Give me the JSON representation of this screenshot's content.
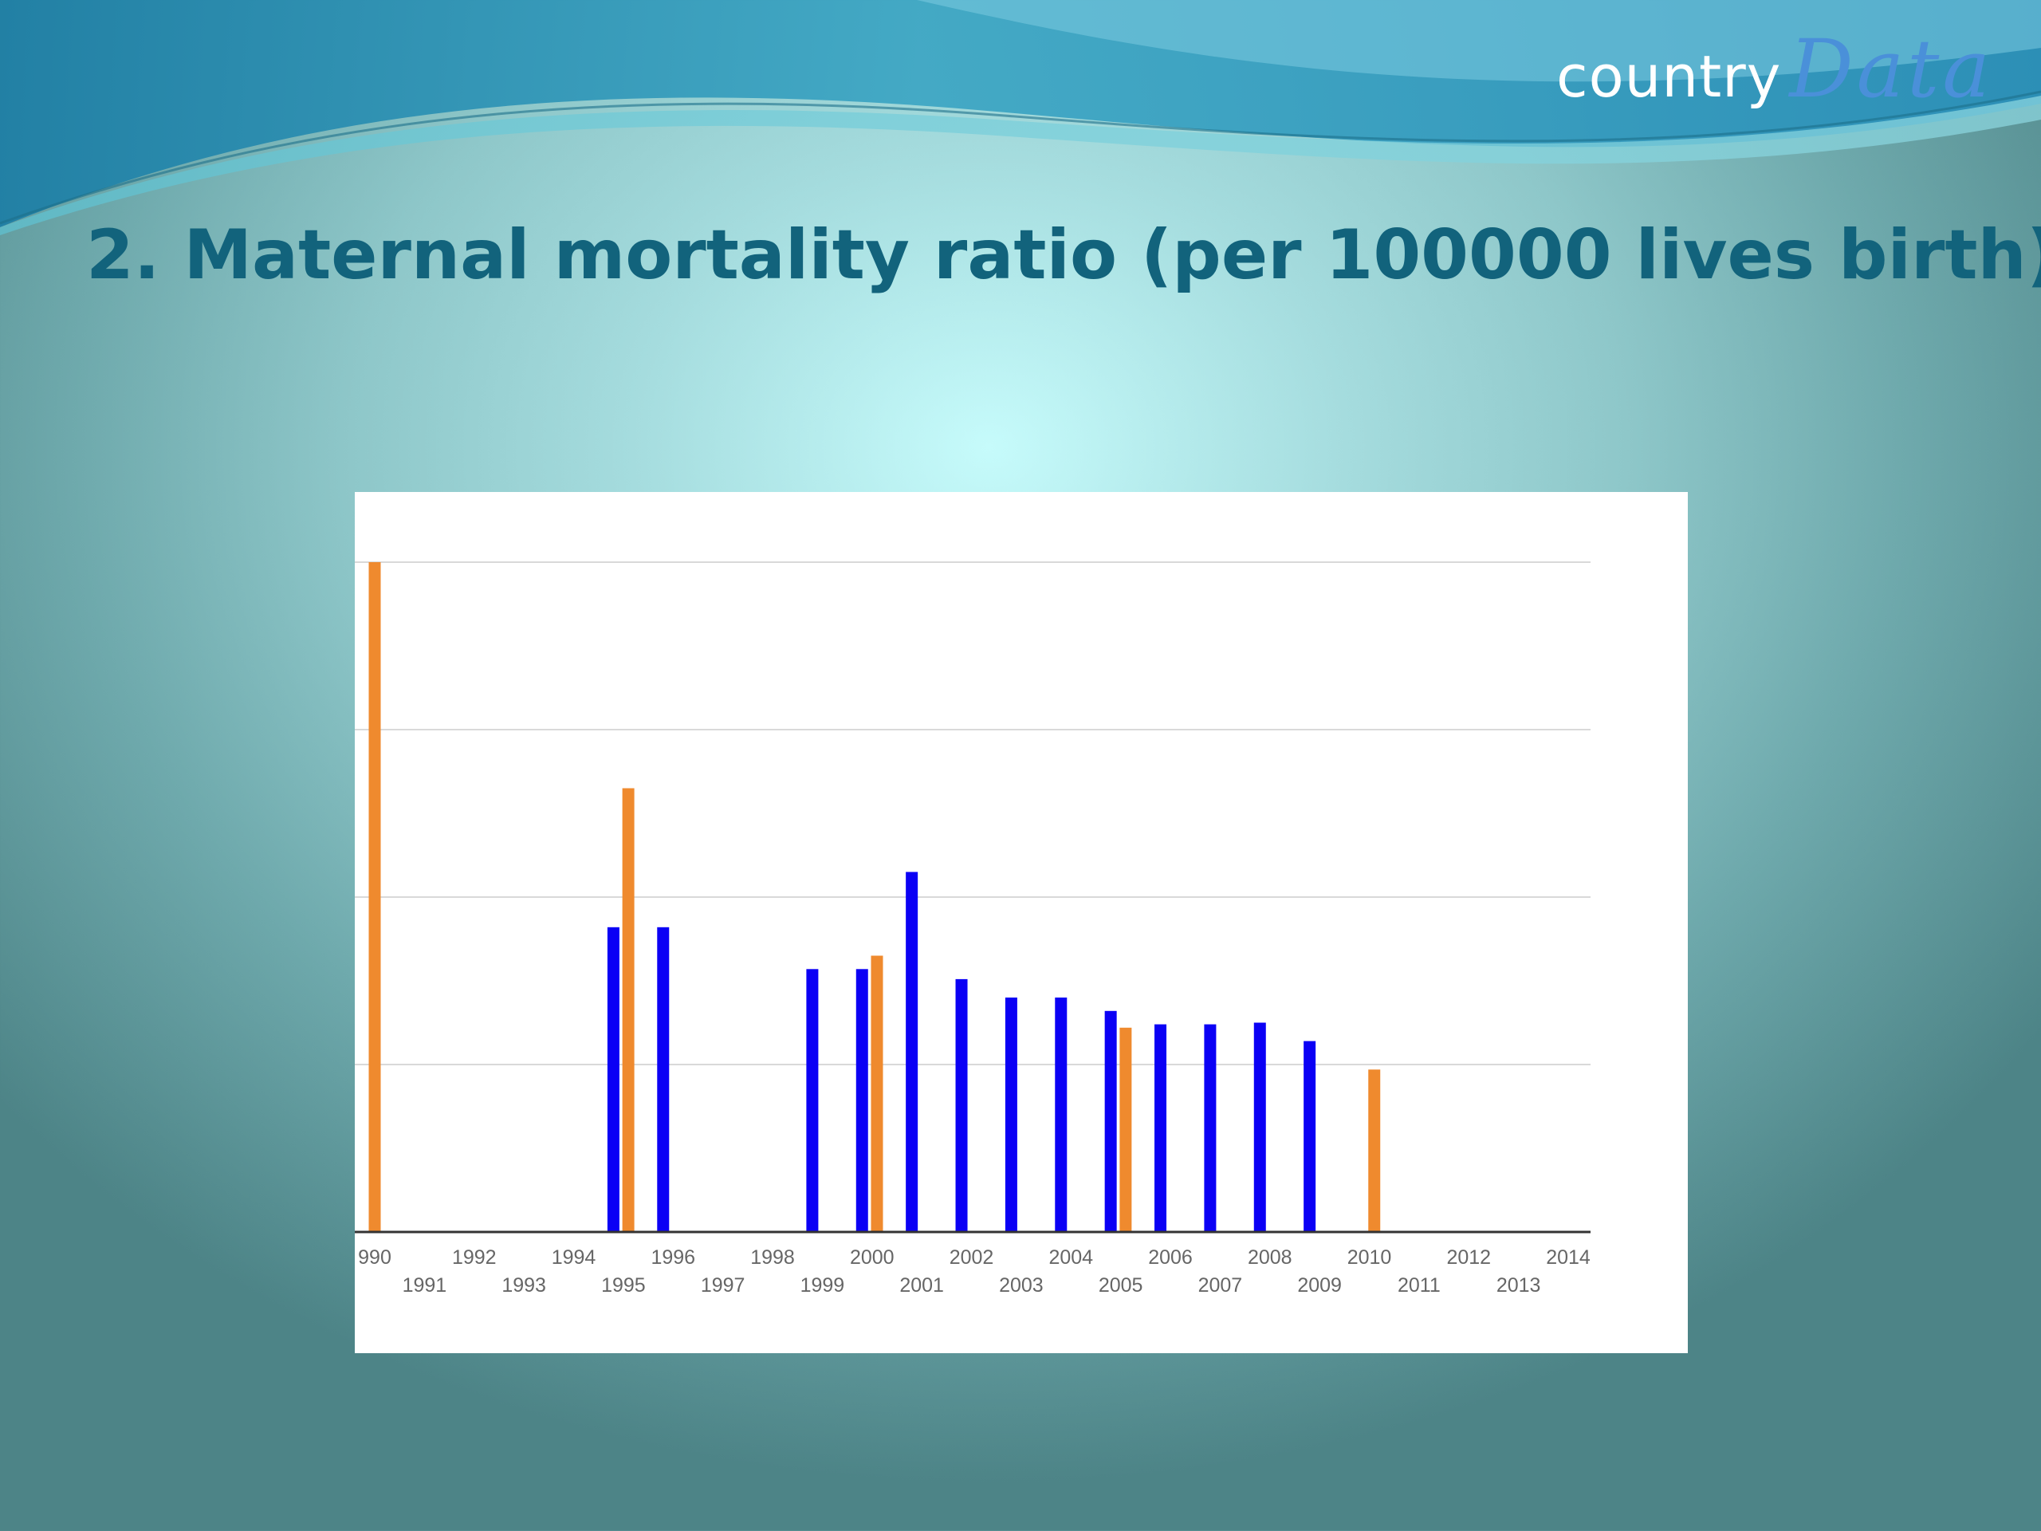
{
  "slide": {
    "title": "2. Maternal mortality ratio (per 100000 lives birth)",
    "logo_country": "country",
    "logo_data": "Data"
  },
  "chart_data": {
    "type": "bar",
    "title": "",
    "xlabel": "",
    "ylabel": "",
    "ylim": [
      0,
      4
    ],
    "grid": true,
    "legend": "none",
    "y_ticks": [
      0,
      1,
      2,
      3,
      4
    ],
    "x_tick_labels": [
      "990",
      "1991",
      "1992",
      "1993",
      "1994",
      "1995",
      "1996",
      "1997",
      "1998",
      "1999",
      "2000",
      "2001",
      "2002",
      "2003",
      "2004",
      "2005",
      "2006",
      "2007",
      "2008",
      "2009",
      "2010",
      "2011",
      "2012",
      "2013",
      "2014"
    ],
    "series": [
      {
        "color": "#0b00f5",
        "points": [
          {
            "x": 1994.8,
            "y": 1.82
          },
          {
            "x": 1995.8,
            "y": 1.82
          },
          {
            "x": 1998.8,
            "y": 1.57
          },
          {
            "x": 1999.8,
            "y": 1.57
          },
          {
            "x": 2000.8,
            "y": 2.15
          },
          {
            "x": 2001.8,
            "y": 1.51
          },
          {
            "x": 2002.8,
            "y": 1.4
          },
          {
            "x": 2003.8,
            "y": 1.4
          },
          {
            "x": 2004.8,
            "y": 1.32
          },
          {
            "x": 2005.8,
            "y": 1.24
          },
          {
            "x": 2006.8,
            "y": 1.24
          },
          {
            "x": 2007.8,
            "y": 1.25
          },
          {
            "x": 2008.8,
            "y": 1.14
          }
        ]
      },
      {
        "color": "#ef8a2e",
        "points": [
          {
            "x": 1990.0,
            "y": 4.0
          },
          {
            "x": 1995.1,
            "y": 2.65
          },
          {
            "x": 2000.1,
            "y": 1.65
          },
          {
            "x": 2005.1,
            "y": 1.22
          },
          {
            "x": 2010.1,
            "y": 0.97
          }
        ]
      }
    ]
  }
}
